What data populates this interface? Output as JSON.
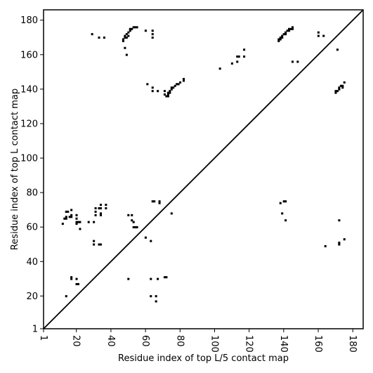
{
  "chart_data": {
    "type": "scatter",
    "xlabel": "Residue index of top L/5 contact map",
    "ylabel": "Residue index of top L contact map",
    "xlim": [
      1,
      186
    ],
    "ylim": [
      1,
      186
    ],
    "xticks": [
      1,
      20,
      40,
      60,
      80,
      100,
      120,
      140,
      160,
      180
    ],
    "yticks": [
      1,
      20,
      40,
      60,
      80,
      100,
      120,
      140,
      160,
      180
    ],
    "diagonal": true,
    "upper_points": [
      [
        29,
        172
      ],
      [
        33,
        170
      ],
      [
        36,
        170
      ],
      [
        47,
        168
      ],
      [
        47,
        169
      ],
      [
        48,
        170
      ],
      [
        48,
        171
      ],
      [
        49,
        170
      ],
      [
        49,
        172
      ],
      [
        50,
        173
      ],
      [
        50,
        171
      ],
      [
        51,
        174
      ],
      [
        51,
        175
      ],
      [
        52,
        175
      ],
      [
        53,
        176
      ],
      [
        54,
        176
      ],
      [
        55,
        176
      ],
      [
        48,
        164
      ],
      [
        49,
        160
      ],
      [
        60,
        174
      ],
      [
        64,
        174
      ],
      [
        64,
        172
      ],
      [
        64,
        170
      ],
      [
        61,
        143
      ],
      [
        64,
        141
      ],
      [
        64,
        139
      ],
      [
        67,
        139
      ],
      [
        71,
        137
      ],
      [
        71,
        139
      ],
      [
        72,
        136
      ],
      [
        73,
        136
      ],
      [
        73,
        137
      ],
      [
        73,
        138
      ],
      [
        74,
        138
      ],
      [
        74,
        139
      ],
      [
        75,
        140
      ],
      [
        75,
        141
      ],
      [
        76,
        141
      ],
      [
        77,
        142
      ],
      [
        78,
        143
      ],
      [
        79,
        143
      ],
      [
        80,
        144
      ],
      [
        82,
        145
      ],
      [
        82,
        146
      ],
      [
        103,
        152
      ],
      [
        110,
        155
      ],
      [
        113,
        156
      ],
      [
        113,
        159
      ],
      [
        114,
        159
      ],
      [
        117,
        159
      ],
      [
        117,
        163
      ],
      [
        137,
        168
      ],
      [
        137,
        169
      ],
      [
        138,
        169
      ],
      [
        138,
        170
      ],
      [
        139,
        170
      ],
      [
        139,
        171
      ],
      [
        140,
        172
      ],
      [
        141,
        172
      ],
      [
        141,
        173
      ],
      [
        142,
        174
      ],
      [
        143,
        174
      ],
      [
        143,
        175
      ],
      [
        144,
        175
      ],
      [
        145,
        176
      ],
      [
        145,
        175
      ],
      [
        145,
        156
      ],
      [
        148,
        156
      ],
      [
        160,
        173
      ],
      [
        160,
        171
      ],
      [
        163,
        171
      ],
      [
        171,
        163
      ],
      [
        170,
        138
      ],
      [
        170,
        139
      ],
      [
        171,
        139
      ],
      [
        172,
        140
      ],
      [
        172,
        141
      ],
      [
        173,
        142
      ],
      [
        174,
        142
      ],
      [
        174,
        141
      ],
      [
        175,
        144
      ]
    ],
    "lower_points": [
      [
        12,
        62
      ],
      [
        13,
        65
      ],
      [
        14,
        65
      ],
      [
        14,
        66
      ],
      [
        14,
        69
      ],
      [
        15,
        69
      ],
      [
        16,
        66
      ],
      [
        17,
        66
      ],
      [
        17,
        67
      ],
      [
        17,
        70
      ],
      [
        20,
        67
      ],
      [
        20,
        65
      ],
      [
        20,
        63
      ],
      [
        20,
        62
      ],
      [
        21,
        63
      ],
      [
        22,
        63
      ],
      [
        22,
        59
      ],
      [
        27,
        63
      ],
      [
        30,
        63
      ],
      [
        31,
        67
      ],
      [
        31,
        69
      ],
      [
        31,
        71
      ],
      [
        33,
        71
      ],
      [
        34,
        71
      ],
      [
        34,
        73
      ],
      [
        34,
        68
      ],
      [
        34,
        67
      ],
      [
        37,
        71
      ],
      [
        37,
        73
      ],
      [
        30,
        52
      ],
      [
        30,
        50
      ],
      [
        33,
        50
      ],
      [
        34,
        50
      ],
      [
        14,
        20
      ],
      [
        17,
        31
      ],
      [
        17,
        30
      ],
      [
        20,
        30
      ],
      [
        20,
        27
      ],
      [
        21,
        27
      ],
      [
        50,
        67
      ],
      [
        52,
        67
      ],
      [
        52,
        64
      ],
      [
        53,
        63
      ],
      [
        53,
        60
      ],
      [
        54,
        60
      ],
      [
        55,
        60
      ],
      [
        60,
        54
      ],
      [
        63,
        52
      ],
      [
        64,
        75
      ],
      [
        65,
        75
      ],
      [
        68,
        75
      ],
      [
        68,
        74
      ],
      [
        75,
        68
      ],
      [
        50,
        30
      ],
      [
        63,
        30
      ],
      [
        63,
        20
      ],
      [
        66,
        20
      ],
      [
        66,
        17
      ],
      [
        67,
        30
      ],
      [
        71,
        31
      ],
      [
        72,
        31
      ],
      [
        138,
        74
      ],
      [
        140,
        75
      ],
      [
        141,
        75
      ],
      [
        139,
        68
      ],
      [
        141,
        64
      ],
      [
        164,
        49
      ],
      [
        172,
        64
      ],
      [
        172,
        51
      ],
      [
        172,
        50
      ],
      [
        175,
        53
      ]
    ]
  }
}
